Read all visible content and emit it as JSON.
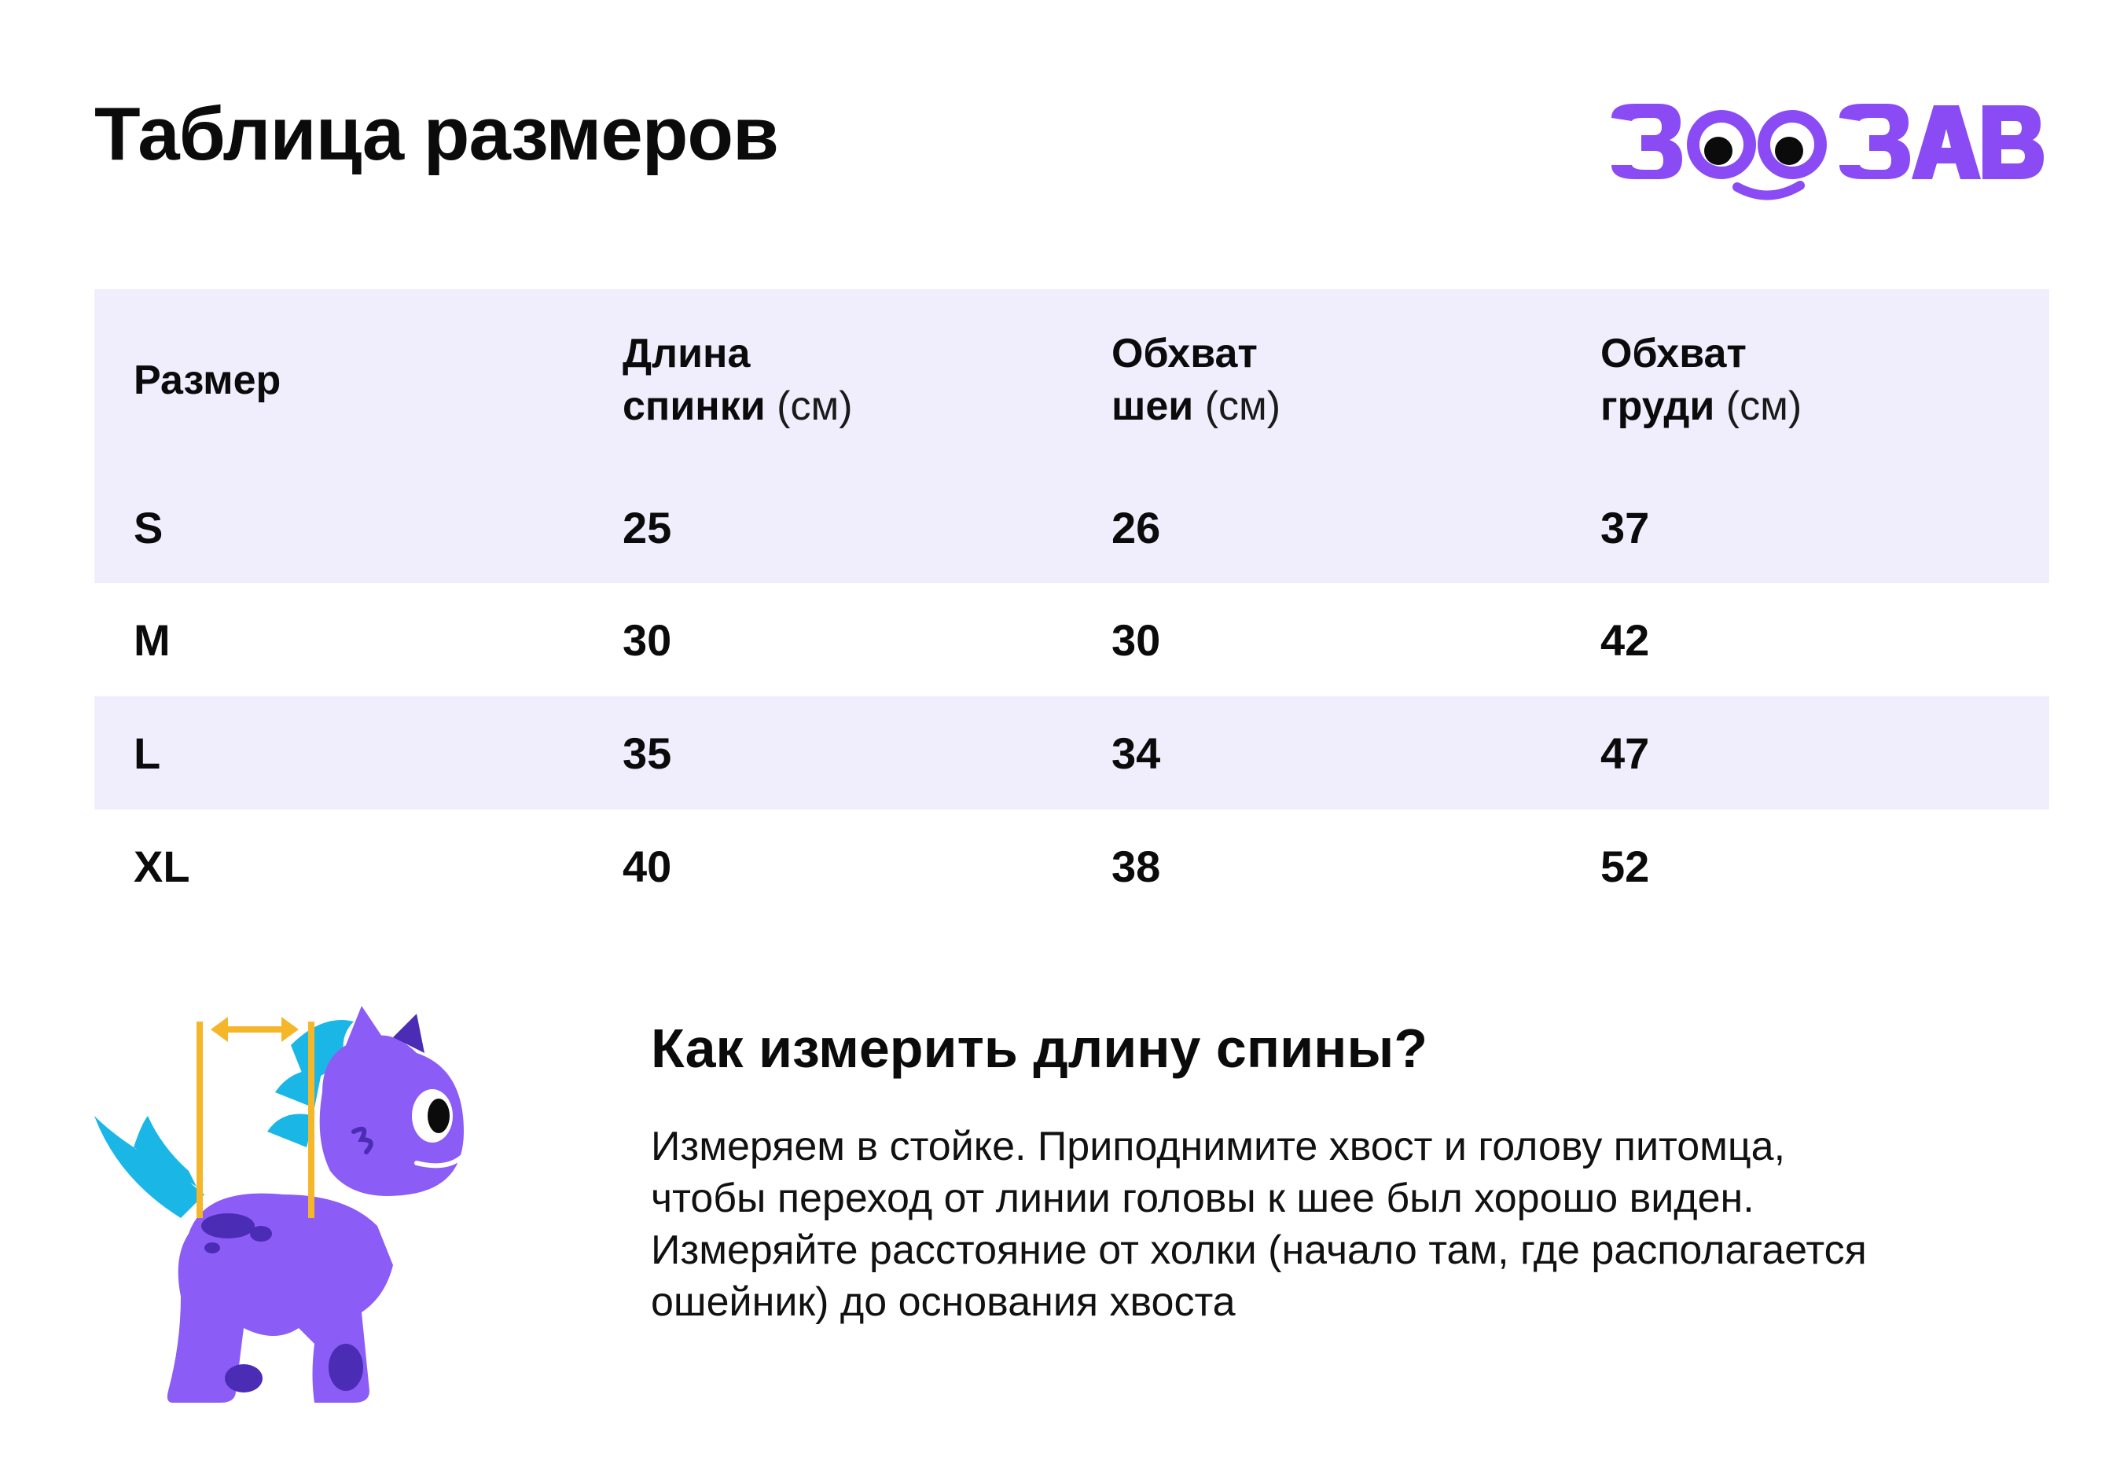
{
  "title": "Таблица размеров",
  "logo": {
    "text": "ЗООЗАВР",
    "icon": "zoozavr-logo-icon",
    "color": "#8a4bf5"
  },
  "table": {
    "headers": [
      {
        "label": "Размер",
        "unit": ""
      },
      {
        "label_line1": "Длина",
        "label_line2": "спинки",
        "unit": "(см)"
      },
      {
        "label_line1": "Обхват",
        "label_line2": "шеи",
        "unit": "(см)"
      },
      {
        "label_line1": "Обхват",
        "label_line2": "груди",
        "unit": "(см)"
      }
    ],
    "rows": [
      {
        "size": "S",
        "back": "25",
        "neck": "26",
        "chest": "37"
      },
      {
        "size": "M",
        "back": "30",
        "neck": "30",
        "chest": "42"
      },
      {
        "size": "L",
        "back": "35",
        "neck": "34",
        "chest": "47"
      },
      {
        "size": "XL",
        "back": "40",
        "neck": "38",
        "chest": "52"
      }
    ],
    "stripe_color": "#f0eefd"
  },
  "how_to": {
    "title": "Как измерить длину спины?",
    "text": "Измеряем в стойке. Приподнимите хвост и голову питомца, чтобы переход от линии головы к шее был хорошо виден. Измеряйте расстояние от холки (начало там, где располагается ошейник) до основания хвоста"
  },
  "illustration": {
    "icon": "dino-measure-icon",
    "colors": {
      "body": "#8b5cf6",
      "spikes": "#1ab7e6",
      "measure": "#f5b62a"
    }
  }
}
